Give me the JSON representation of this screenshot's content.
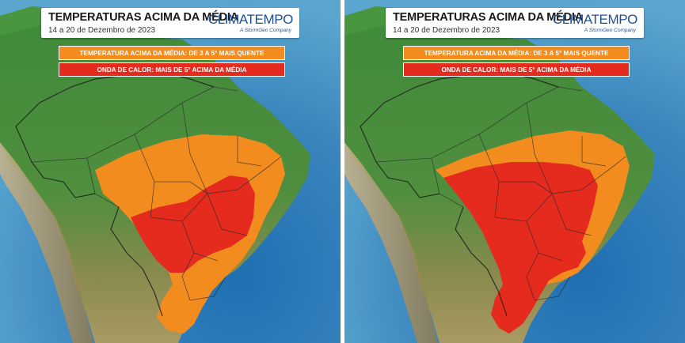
{
  "title": "TEMPERATURAS ACIMA DA MÉDIA",
  "subtitle": "14 a 20 de Dezembro de 2023",
  "brand": {
    "name": "CLIMATEMPO",
    "tagline": "A StormGeo Company"
  },
  "legend": [
    {
      "label": "TEMPERATURA ACIMA DA MÉDIA: DE 3 A 5° MAIS QUENTE",
      "color": "#f28c1f"
    },
    {
      "label": "ONDA DE CALOR: MAIS DE 5° ACIMA DA MÉDIA",
      "color": "#e52b1e"
    }
  ],
  "colors": {
    "ocean": "#3a7fb4",
    "land_forest": "#3f8a3a",
    "land_dry": "#9a8a52",
    "above_average": "#f28c1f",
    "heat_wave": "#e52b1e",
    "borders": "#2b2b2b"
  }
}
